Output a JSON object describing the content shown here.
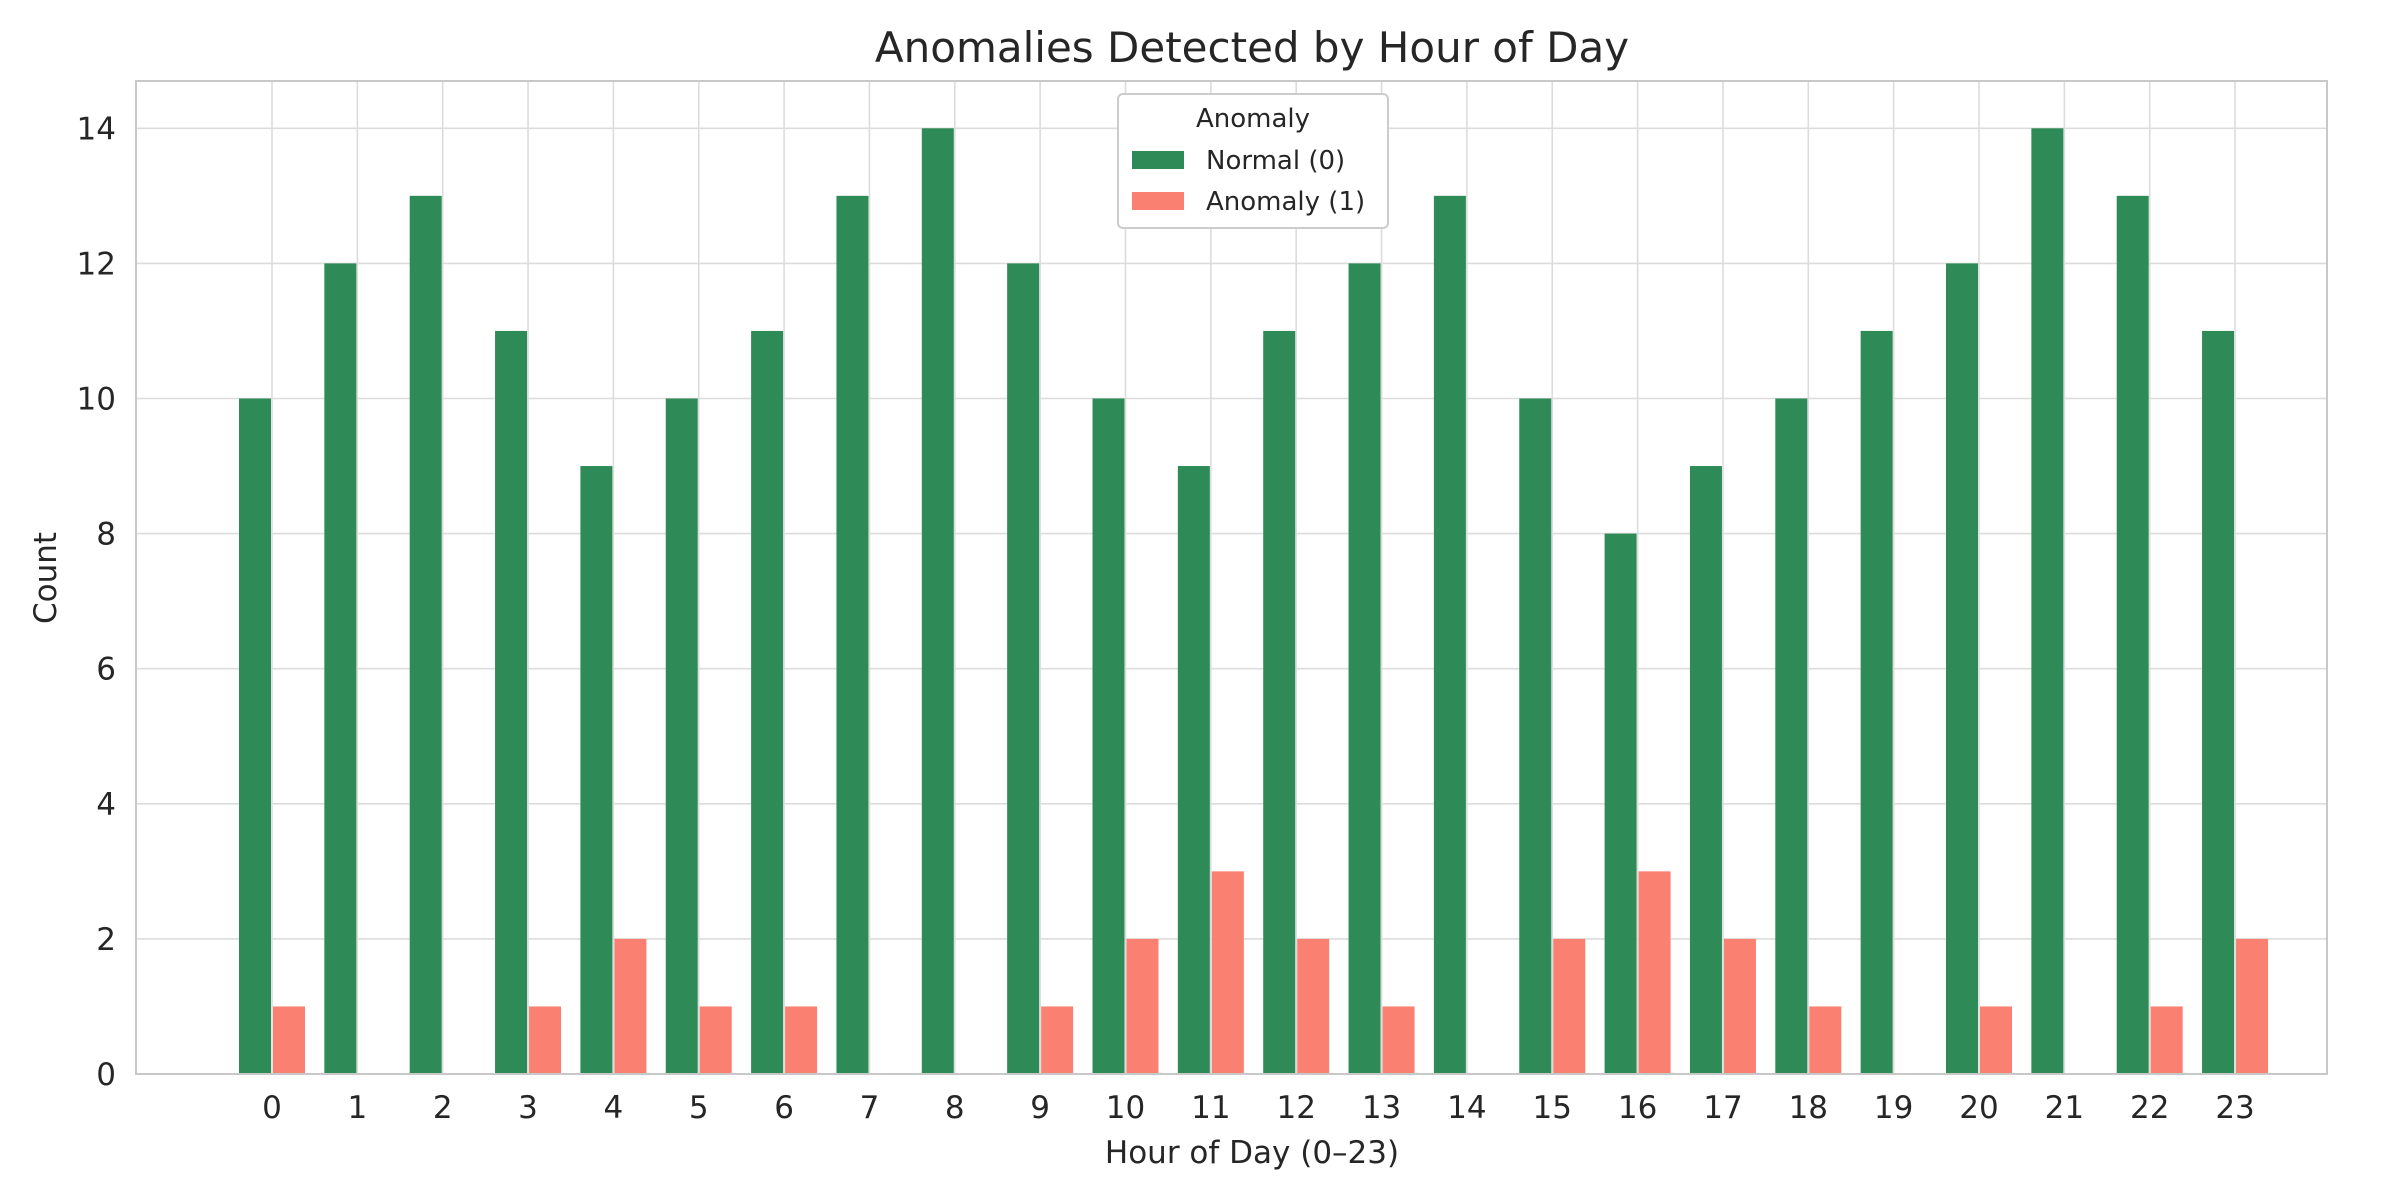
{
  "chart_data": {
    "type": "bar",
    "title": "Anomalies Detected by Hour of Day",
    "xlabel": "Hour of Day (0–23)",
    "ylabel": "Count",
    "categories": [
      "0",
      "1",
      "2",
      "3",
      "4",
      "5",
      "6",
      "7",
      "8",
      "9",
      "10",
      "11",
      "12",
      "13",
      "14",
      "15",
      "16",
      "17",
      "18",
      "19",
      "20",
      "21",
      "22",
      "23"
    ],
    "series": [
      {
        "name": "Normal (0)",
        "color": "#2e8b57",
        "values": [
          10,
          12,
          13,
          11,
          9,
          10,
          11,
          13,
          14,
          12,
          10,
          9,
          11,
          12,
          13,
          10,
          8,
          9,
          10,
          11,
          12,
          14,
          13,
          11
        ]
      },
      {
        "name": "Anomaly (1)",
        "color": "#fa8072",
        "values": [
          1,
          0,
          0,
          1,
          2,
          1,
          1,
          0,
          0,
          1,
          2,
          3,
          2,
          1,
          0,
          2,
          3,
          2,
          1,
          0,
          1,
          0,
          1,
          2
        ]
      }
    ],
    "ylim": [
      0,
      14.7
    ],
    "yticks": [
      0,
      2,
      4,
      6,
      8,
      10,
      12,
      14
    ],
    "grid": true,
    "legend": {
      "title": "Anomaly",
      "placement": "top-center"
    }
  }
}
